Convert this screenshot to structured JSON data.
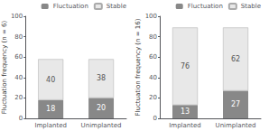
{
  "chart_data": [
    {
      "type": "bar",
      "stacked": true,
      "data_labels": true,
      "grid": false,
      "legend": "upper right",
      "ylabel": "Fluctuation frequency (n = 6)",
      "categories": [
        "Implanted",
        "Unimplanted"
      ],
      "series": [
        {
          "name": "Fluctuation",
          "color": "#888888",
          "values": [
            18,
            20
          ]
        },
        {
          "name": "Stable",
          "color": "#e8e8e8",
          "values": [
            40,
            38
          ]
        }
      ],
      "ylim": [
        0,
        100
      ],
      "yticks": [
        0,
        20,
        40,
        60,
        80,
        100
      ]
    },
    {
      "type": "bar",
      "stacked": true,
      "data_labels": true,
      "grid": false,
      "legend": "upper right",
      "ylabel": "Fluctuation frequency (n = 16)",
      "categories": [
        "Implanted",
        "Unimplanted"
      ],
      "series": [
        {
          "name": "Fluctuation",
          "color": "#888888",
          "values": [
            13,
            27
          ]
        },
        {
          "name": "Stable",
          "color": "#e8e8e8",
          "values": [
            76,
            62
          ]
        }
      ],
      "ylim": [
        0,
        100
      ],
      "yticks": [
        0,
        20,
        40,
        60,
        80,
        100
      ]
    }
  ]
}
